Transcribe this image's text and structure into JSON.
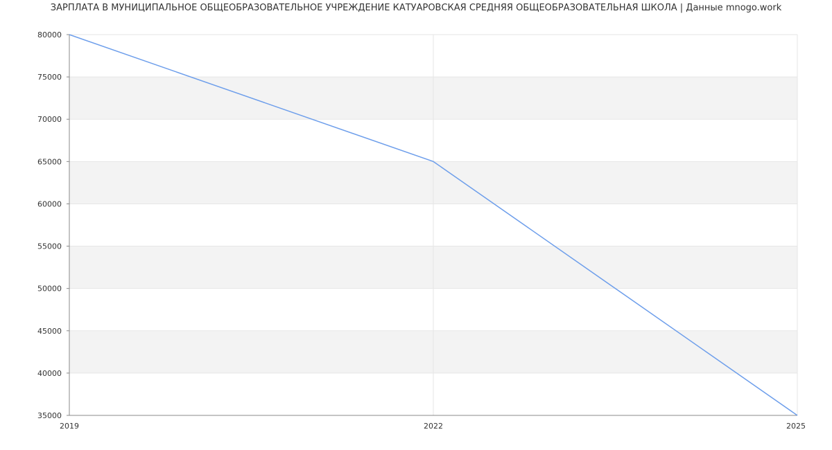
{
  "chart_data": {
    "type": "line",
    "title": "ЗАРПЛАТА В МУНИЦИПАЛЬНОЕ ОБЩЕОБРАЗОВАТЕЛЬНОЕ УЧРЕЖДЕНИЕ КАТУАРОВСКАЯ СРЕДНЯЯ ОБЩЕОБРАЗОВАТЕЛЬНАЯ ШКОЛА | Данные mnogo.work",
    "xlabel": "",
    "ylabel": "",
    "x": [
      2019,
      2022,
      2025
    ],
    "series": [
      {
        "values": [
          80000,
          65000,
          35000
        ],
        "color": "#6d9eeb"
      }
    ],
    "xlim": [
      2019,
      2025
    ],
    "ylim": [
      35000,
      80000
    ],
    "x_ticks": [
      "2019",
      "2022",
      "2025"
    ],
    "y_ticks": [
      "35000",
      "40000",
      "45000",
      "50000",
      "55000",
      "60000",
      "65000",
      "70000",
      "75000",
      "80000"
    ],
    "grid": true,
    "band_color": "#f3f3f3"
  }
}
